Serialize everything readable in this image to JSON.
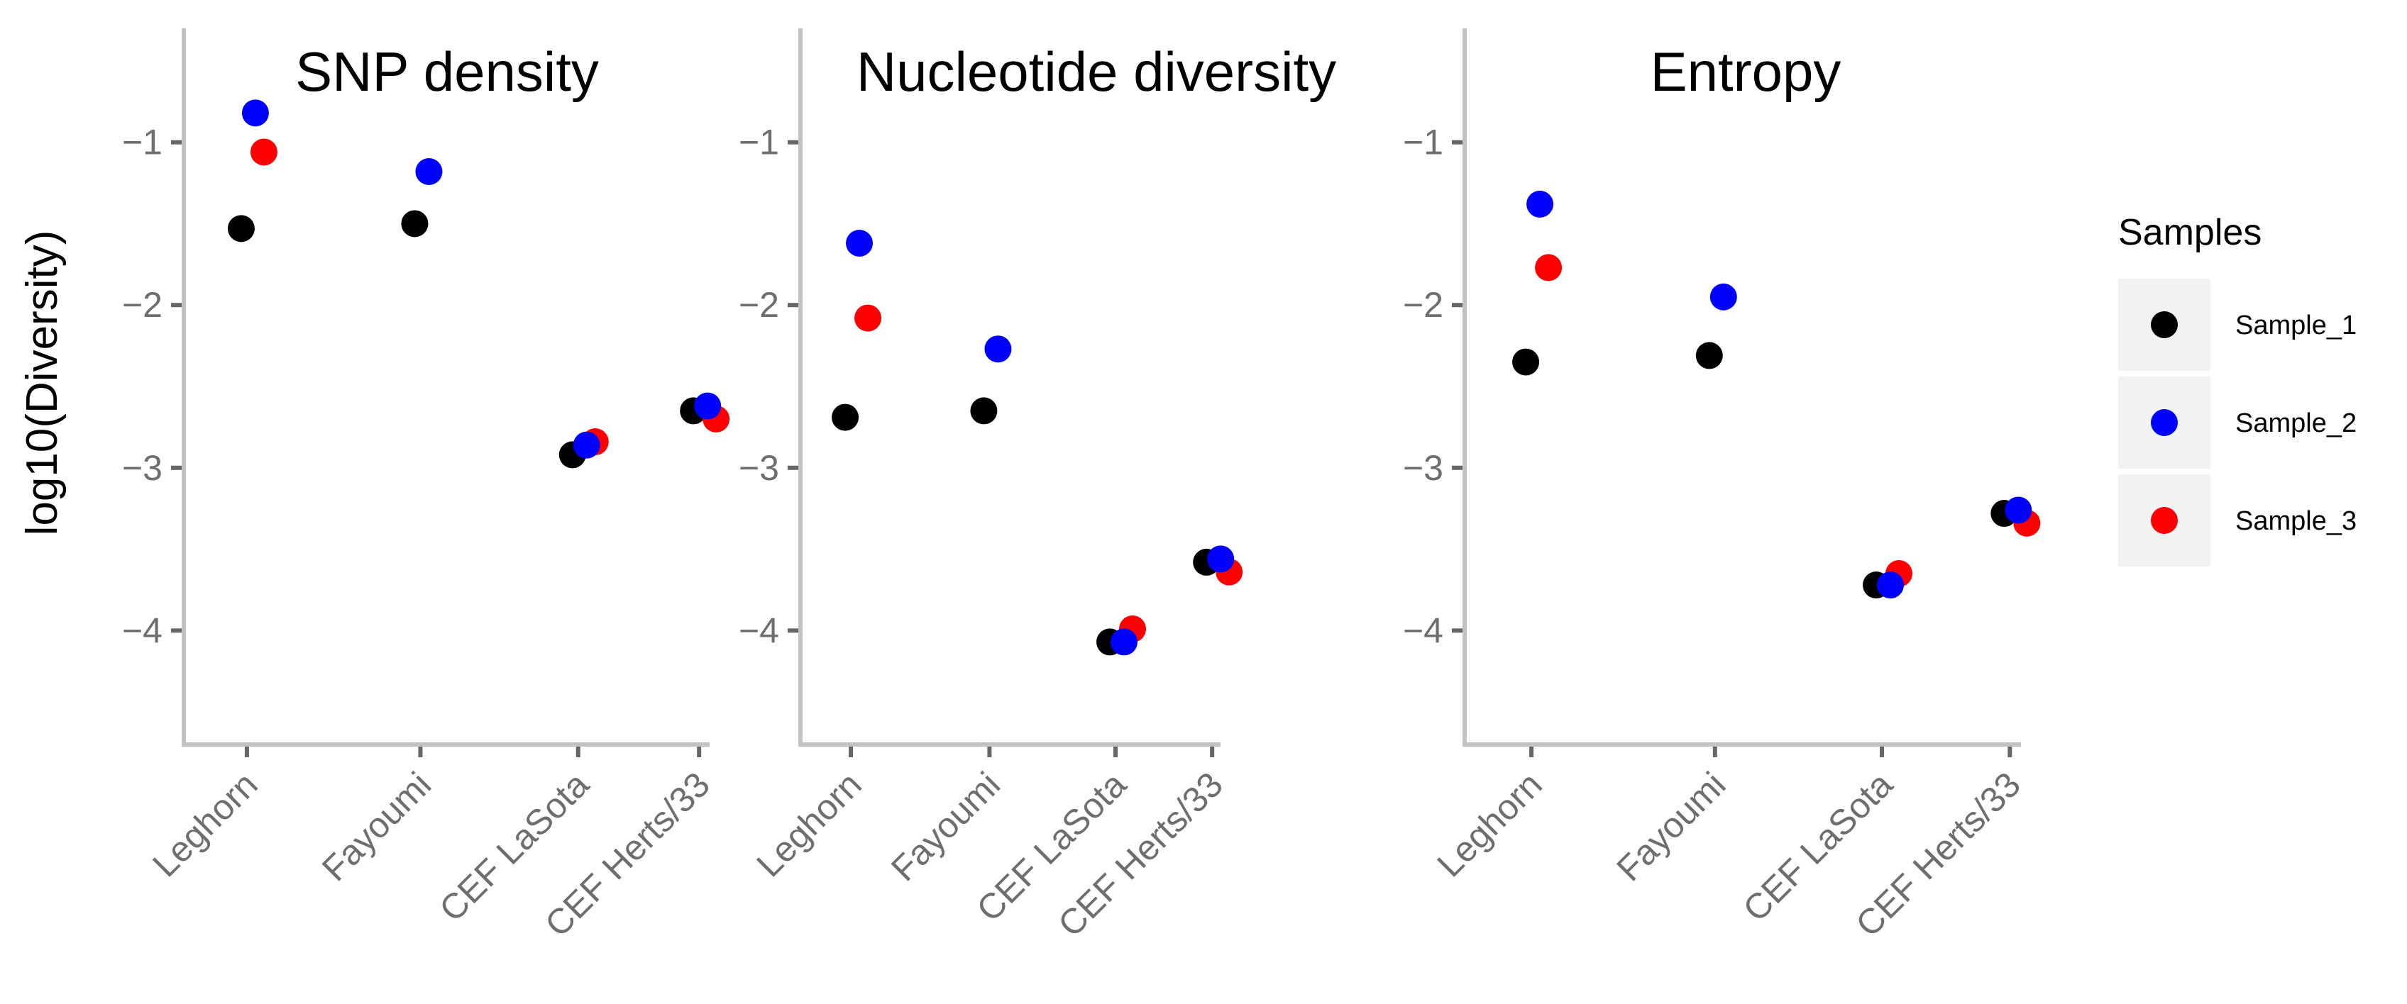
{
  "chart_data": {
    "type": "scatter",
    "ylabel": "log10(Diversity)",
    "ylim": [
      -4.7,
      -0.3
    ],
    "yticks": [
      -1,
      -2,
      -3,
      -4
    ],
    "ytick_labels": [
      "−1",
      "−2",
      "−3",
      "−4"
    ],
    "categories": [
      "Leghorn",
      "Fayoumi",
      "CEF LaSota",
      "CEF Herts/33"
    ],
    "legend": {
      "title": "Samples",
      "position": "right",
      "entries": [
        {
          "name": "Sample_1",
          "color": "#000000"
        },
        {
          "name": "Sample_2",
          "color": "#0000ff"
        },
        {
          "name": "Sample_3",
          "color": "#ff0000"
        }
      ]
    },
    "panels": [
      {
        "title": "SNP density",
        "series": [
          {
            "name": "Sample_1",
            "values": [
              -1.53,
              -1.5,
              -2.92,
              -2.65
            ]
          },
          {
            "name": "Sample_2",
            "values": [
              -0.82,
              -1.18,
              -2.86,
              -2.62
            ]
          },
          {
            "name": "Sample_3",
            "values": [
              -1.06,
              null,
              -2.84,
              -2.7
            ]
          }
        ]
      },
      {
        "title": "Nucleotide diversity",
        "series": [
          {
            "name": "Sample_1",
            "values": [
              -2.69,
              -2.65,
              -4.07,
              -3.58
            ]
          },
          {
            "name": "Sample_2",
            "values": [
              -1.62,
              -2.27,
              -4.07,
              -3.56
            ]
          },
          {
            "name": "Sample_3",
            "values": [
              -2.08,
              null,
              -3.99,
              -3.64
            ]
          }
        ]
      },
      {
        "title": "Entropy",
        "series": [
          {
            "name": "Sample_1",
            "values": [
              -2.35,
              -2.31,
              -3.72,
              -3.28
            ]
          },
          {
            "name": "Sample_2",
            "values": [
              -1.38,
              -1.95,
              -3.72,
              -3.26
            ]
          },
          {
            "name": "Sample_3",
            "values": [
              -1.77,
              null,
              -3.65,
              -3.34
            ]
          }
        ]
      }
    ]
  }
}
